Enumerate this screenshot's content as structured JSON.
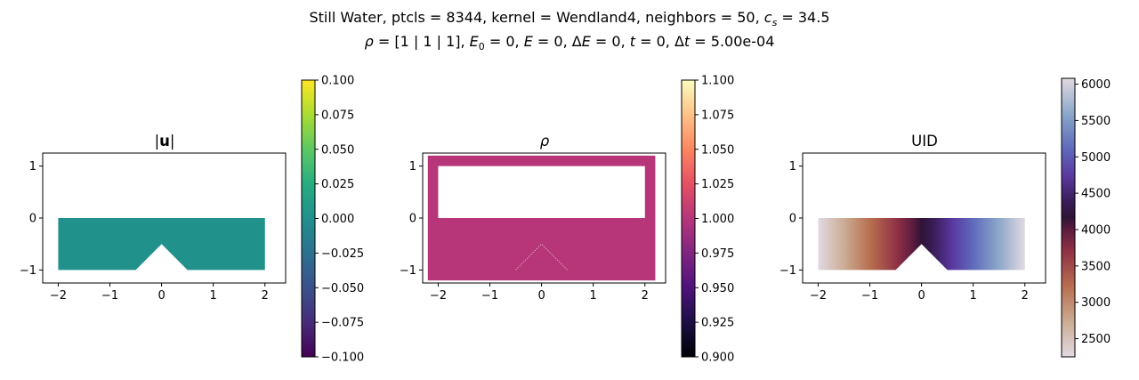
{
  "figure": {
    "title_line1_prefix": "Still Water, ptcls = 8344, kernel = Wendland4, neighbors = 50, ",
    "title_line1_cs_symbol": "c",
    "title_line1_cs_sub": "s",
    "title_line1_cs_value": " = 34.5",
    "title_line2_rho": "ρ",
    "title_line2_a": " = [1 | 1 | 1], ",
    "title_line2_E0": "E",
    "title_line2_E0_sub": "0",
    "title_line2_b": " = 0, ",
    "title_line2_E": "E",
    "title_line2_c": " = 0, Δ",
    "title_line2_dE": "E",
    "title_line2_d": " = 0, ",
    "title_line2_t": "t",
    "title_line2_e": " = 0, Δ",
    "title_line2_dt": "t",
    "title_line2_f": " = 5.00e-04"
  },
  "chart_data": [
    {
      "type": "scatter",
      "title": "|u|",
      "title_pre": "|",
      "title_bold": "u",
      "title_post": "|",
      "xlim": [
        -2.3,
        2.4
      ],
      "ylim": [
        -1.25,
        1.25
      ],
      "xticks": [
        "−2",
        "−1",
        "0",
        "1",
        "2"
      ],
      "xtick_values": [
        -2,
        -1,
        0,
        1,
        2
      ],
      "yticks": [
        "1",
        "0",
        "−1"
      ],
      "ytick_values": [
        1,
        0,
        -1
      ],
      "colormap": "viridis",
      "fill_color": "#21918c",
      "colorbar_ticks": [
        "0.100",
        "0.075",
        "0.050",
        "0.025",
        "0.000",
        "−0.025",
        "−0.050",
        "−0.075",
        "−0.100"
      ],
      "colorbar_values": [
        0.1,
        0.075,
        0.05,
        0.025,
        0.0,
        -0.025,
        -0.05,
        -0.075,
        -0.1
      ],
      "colorbar_range": [
        -0.1,
        0.1
      ]
    },
    {
      "type": "scatter",
      "title": "ρ",
      "xlim": [
        -2.3,
        2.4
      ],
      "ylim": [
        -1.25,
        1.25
      ],
      "xticks": [
        "−2",
        "−1",
        "0",
        "1",
        "2"
      ],
      "xtick_values": [
        -2,
        -1,
        0,
        1,
        2
      ],
      "yticks": [
        "1",
        "0",
        "−1"
      ],
      "ytick_values": [
        1,
        0,
        -1
      ],
      "colormap": "magma",
      "fill_color": "#b63679",
      "colorbar_ticks": [
        "1.100",
        "1.075",
        "1.050",
        "1.025",
        "1.000",
        "0.975",
        "0.950",
        "0.925",
        "0.900"
      ],
      "colorbar_values": [
        1.1,
        1.075,
        1.05,
        1.025,
        1.0,
        0.975,
        0.95,
        0.925,
        0.9
      ],
      "colorbar_range": [
        0.9,
        1.1
      ]
    },
    {
      "type": "scatter",
      "title": "UID",
      "xlim": [
        -2.3,
        2.4
      ],
      "ylim": [
        -1.25,
        1.25
      ],
      "xticks": [
        "−2",
        "−1",
        "0",
        "1",
        "2"
      ],
      "xtick_values": [
        -2,
        -1,
        0,
        1,
        2
      ],
      "yticks": [
        "1",
        "0",
        "−1"
      ],
      "ytick_values": [
        1,
        0,
        -1
      ],
      "colormap": "twilight",
      "colorbar_ticks": [
        "6000",
        "5500",
        "5000",
        "4500",
        "4000",
        "3500",
        "3000",
        "2500"
      ],
      "colorbar_values": [
        6000,
        5500,
        5000,
        4500,
        4000,
        3500,
        3000,
        2500
      ],
      "colorbar_range": [
        2250,
        6080
      ]
    }
  ],
  "geometry_data": {
    "fluid_x": [
      -2,
      2
    ],
    "fluid_y": [
      -1,
      0
    ],
    "obstacle": [
      [
        -0.5,
        -1
      ],
      [
        0,
        -0.5
      ],
      [
        0.5,
        -1
      ]
    ],
    "container_outer_x": [
      -2.2,
      2.2
    ],
    "container_outer_y": [
      -1.2,
      1.2
    ],
    "container_inner_x": [
      -2.0,
      2.0
    ],
    "container_inner_y": [
      0.0,
      1.0
    ]
  }
}
